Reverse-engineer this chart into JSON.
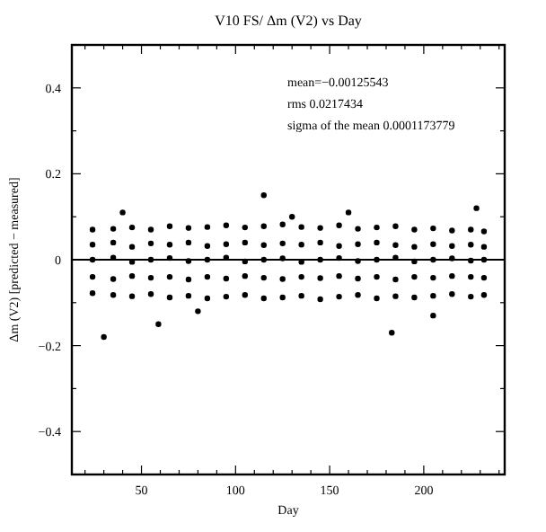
{
  "chart_data": {
    "type": "scatter",
    "title": "V10 FS/ Δm (V2) vs Day",
    "xlabel": "Day",
    "ylabel": "Δm (V2) [predicted − measured]",
    "annotations": [
      "mean=−0.00125543",
      "rms 0.0217434",
      "sigma of the mean 0.0001173779"
    ],
    "xlim": [
      13,
      243
    ],
    "ylim": [
      -0.5,
      0.5
    ],
    "xticks": [
      {
        "value": 20,
        "label": null
      },
      {
        "value": 30,
        "label": null
      },
      {
        "value": 40,
        "label": null
      },
      50,
      {
        "value": 60,
        "label": null
      },
      {
        "value": 70,
        "label": null
      },
      {
        "value": 80,
        "label": null
      },
      {
        "value": 90,
        "label": null
      },
      100,
      {
        "value": 110,
        "label": null
      },
      {
        "value": 120,
        "label": null
      },
      {
        "value": 130,
        "label": null
      },
      {
        "value": 140,
        "label": null
      },
      150,
      {
        "value": 160,
        "label": null
      },
      {
        "value": 170,
        "label": null
      },
      {
        "value": 180,
        "label": null
      },
      {
        "value": 190,
        "label": null
      },
      200,
      {
        "value": 210,
        "label": null
      },
      {
        "value": 220,
        "label": null
      },
      {
        "value": 230,
        "label": null
      },
      {
        "value": 240,
        "label": null
      }
    ],
    "yticks": [
      -0.4,
      {
        "value": -0.3,
        "label": null
      },
      -0.2,
      {
        "value": -0.1,
        "label": null
      },
      0,
      {
        "value": 0.1,
        "label": null
      },
      0.2,
      {
        "value": 0.3,
        "label": null
      },
      0.4
    ],
    "ref_lines": [
      {
        "axis": "y",
        "value": 0,
        "color": "#000000"
      }
    ],
    "marker": "circle",
    "series": [
      {
        "color": "#000000",
        "x": [
          24,
          35,
          45,
          55,
          65,
          75,
          85,
          95,
          105,
          115,
          125,
          135,
          145,
          155,
          165,
          175,
          185,
          195,
          205,
          215,
          225,
          232,
          24,
          35,
          45,
          55,
          65,
          75,
          85,
          95,
          105,
          115,
          125,
          135,
          145,
          155,
          165,
          175,
          185,
          195,
          205,
          215,
          225,
          232,
          24,
          35,
          45,
          55,
          65,
          75,
          85,
          95,
          105,
          115,
          125,
          135,
          145,
          155,
          165,
          175,
          185,
          195,
          205,
          215,
          225,
          232,
          24,
          35,
          45,
          55,
          65,
          75,
          85,
          95,
          105,
          115,
          125,
          135,
          145,
          155,
          165,
          175,
          185,
          195,
          205,
          215,
          225,
          232,
          24,
          35,
          45,
          55,
          65,
          75,
          85,
          95,
          105,
          115,
          125,
          135,
          145,
          155,
          165,
          175,
          185,
          195,
          205,
          215,
          225,
          232,
          30,
          115,
          59,
          183,
          228,
          80,
          160,
          205,
          130,
          40
        ],
        "values": [
          0.07,
          0.072,
          0.075,
          0.07,
          0.078,
          0.074,
          0.076,
          0.08,
          0.075,
          0.078,
          0.082,
          0.076,
          0.074,
          0.08,
          0.072,
          0.075,
          0.078,
          0.07,
          0.073,
          0.068,
          0.07,
          0.066,
          0.035,
          0.04,
          0.03,
          0.038,
          0.035,
          0.04,
          0.032,
          0.036,
          0.04,
          0.034,
          0.038,
          0.035,
          0.04,
          0.032,
          0.036,
          0.04,
          0.034,
          0.03,
          0.036,
          0.032,
          0.035,
          0.03,
          0.0,
          0.005,
          -0.005,
          0.0,
          0.004,
          -0.003,
          0.0,
          0.005,
          -0.004,
          0.0,
          0.003,
          -0.005,
          0.0,
          0.004,
          -0.003,
          0.0,
          0.005,
          -0.004,
          0.0,
          0.003,
          -0.002,
          0.0,
          -0.04,
          -0.045,
          -0.038,
          -0.042,
          -0.04,
          -0.046,
          -0.04,
          -0.044,
          -0.038,
          -0.042,
          -0.045,
          -0.04,
          -0.043,
          -0.038,
          -0.044,
          -0.04,
          -0.046,
          -0.04,
          -0.042,
          -0.038,
          -0.04,
          -0.042,
          -0.078,
          -0.082,
          -0.085,
          -0.08,
          -0.088,
          -0.084,
          -0.09,
          -0.086,
          -0.082,
          -0.09,
          -0.088,
          -0.084,
          -0.092,
          -0.086,
          -0.082,
          -0.09,
          -0.085,
          -0.088,
          -0.084,
          -0.08,
          -0.086,
          -0.082,
          -0.18,
          0.15,
          -0.15,
          -0.17,
          0.12,
          -0.12,
          0.11,
          -0.13,
          0.1,
          0.11
        ]
      }
    ]
  }
}
